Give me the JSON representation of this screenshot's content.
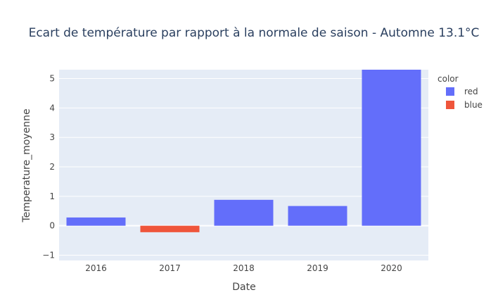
{
  "chart_data": {
    "type": "bar",
    "title": "Ecart de température par rapport à la normale de saison - Automne 13.1°C",
    "xlabel": "Date",
    "ylabel": "Temperature_moyenne",
    "categories": [
      "2016",
      "2017",
      "2018",
      "2019",
      "2020"
    ],
    "values": [
      0.28,
      -0.22,
      0.88,
      0.67,
      5.3
    ],
    "bar_colors": [
      "red",
      "blue",
      "red",
      "red",
      "red"
    ],
    "ylim": [
      -1.18,
      5.3
    ],
    "yticks": [
      -1,
      0,
      1,
      2,
      3,
      4,
      5
    ],
    "grid": true,
    "legend": {
      "title": "color",
      "placement": "right",
      "entries": [
        {
          "label": "red",
          "color": "#636efa"
        },
        {
          "label": "blue",
          "color": "#ef553b"
        }
      ]
    },
    "colors": {
      "red": "#636efa",
      "blue": "#ef553b",
      "plot_bg": "#e5ecf6",
      "text": "#444444",
      "title": "#2a3f5f"
    }
  }
}
